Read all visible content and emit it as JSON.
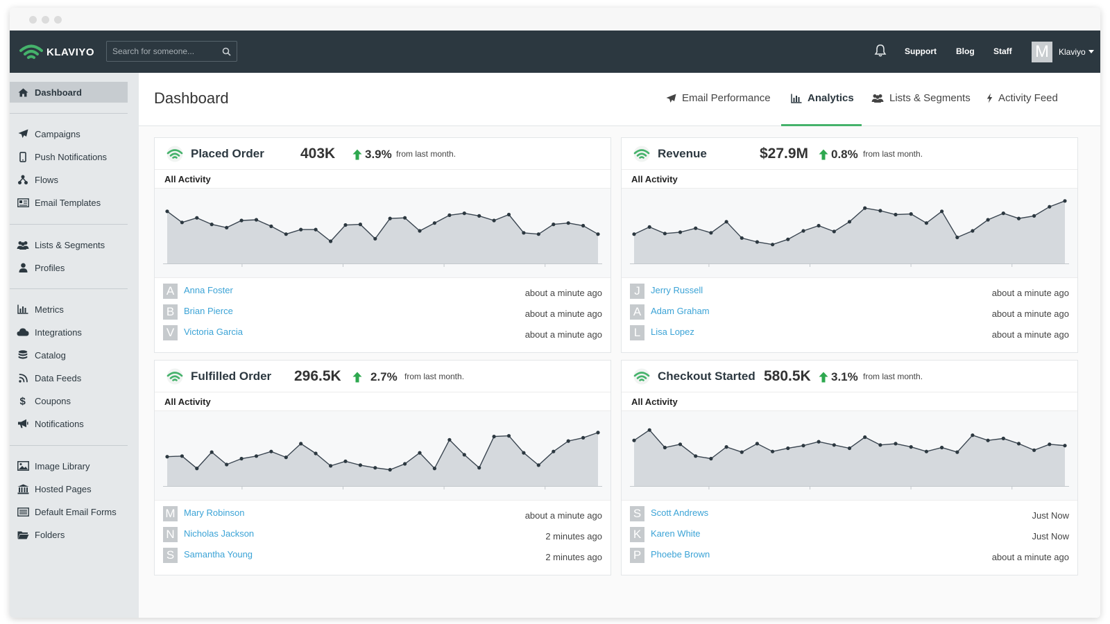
{
  "window": {
    "chrome_dots": [
      "dot",
      "dot",
      "dot"
    ]
  },
  "topbar": {
    "logo_text": "KLAVIYO",
    "search_placeholder": "Search for someone...",
    "nav": [
      "Support",
      "Blog",
      "Staff"
    ],
    "avatar_letter": "M",
    "account_name": "Klaviyo"
  },
  "sidebar": {
    "items": [
      {
        "label": "Dashboard",
        "icon": "home-icon",
        "active": true
      },
      {
        "label": "Campaigns",
        "icon": "paper-plane-icon"
      },
      {
        "label": "Push Notifications",
        "icon": "mobile-icon"
      },
      {
        "label": "Flows",
        "icon": "flow-icon"
      },
      {
        "label": "Email Templates",
        "icon": "template-icon"
      },
      {
        "label": "Lists & Segments",
        "icon": "users-icon"
      },
      {
        "label": "Profiles",
        "icon": "user-icon"
      },
      {
        "label": "Metrics",
        "icon": "bar-chart-icon"
      },
      {
        "label": "Integrations",
        "icon": "cloud-icon"
      },
      {
        "label": "Catalog",
        "icon": "database-icon"
      },
      {
        "label": "Data Feeds",
        "icon": "rss-icon"
      },
      {
        "label": "Coupons",
        "icon": "dollar-icon"
      },
      {
        "label": "Notifications",
        "icon": "megaphone-icon"
      },
      {
        "label": "Image Library",
        "icon": "image-icon"
      },
      {
        "label": "Hosted Pages",
        "icon": "bank-icon"
      },
      {
        "label": "Default Email Forms",
        "icon": "form-icon"
      },
      {
        "label": "Folders",
        "icon": "folder-icon"
      }
    ]
  },
  "main": {
    "title": "Dashboard",
    "tabs": [
      {
        "label": "Email Performance",
        "icon": "paper-plane-icon"
      },
      {
        "label": "Analytics",
        "icon": "bar-chart-icon",
        "active": true
      },
      {
        "label": "Lists & Segments",
        "icon": "users-icon"
      },
      {
        "label": "Activity Feed",
        "icon": "bolt-icon"
      }
    ]
  },
  "colors": {
    "accent_green": "#45b26b",
    "link_blue": "#3ba3d6",
    "topbar_bg": "#2c3840",
    "sidebar_bg": "#e5e8ea"
  },
  "cards": [
    {
      "title": "Placed Order",
      "value": "403K",
      "pct": "3.9%",
      "from": "from last month.",
      "activity_label": "All Activity",
      "chart_data": {
        "type": "area",
        "values": [
          80,
          63,
          70,
          60,
          55,
          66,
          67,
          57,
          45,
          52,
          52,
          34,
          59,
          60,
          38,
          69,
          70,
          50,
          62,
          74,
          77,
          73,
          66,
          75,
          47,
          45,
          60,
          62,
          58,
          45
        ]
      },
      "activity": [
        {
          "initial": "A",
          "name": "Anna Foster",
          "time": "about a minute ago"
        },
        {
          "initial": "B",
          "name": "Brian Pierce",
          "time": "about a minute ago"
        },
        {
          "initial": "V",
          "name": "Victoria Garcia",
          "time": "about a minute ago"
        }
      ]
    },
    {
      "title": "Revenue",
      "value": "$27.9M",
      "pct": "0.8%",
      "from": "from last month.",
      "activity_label": "All Activity",
      "chart_data": {
        "type": "area",
        "values": [
          45,
          56,
          46,
          48,
          54,
          47,
          64,
          39,
          33,
          29,
          37,
          50,
          58,
          49,
          64,
          85,
          81,
          75,
          76,
          62,
          80,
          40,
          50,
          67,
          77,
          69,
          73,
          87,
          96
        ]
      },
      "activity": [
        {
          "initial": "J",
          "name": "Jerry Russell",
          "time": "about a minute ago"
        },
        {
          "initial": "A",
          "name": "Adam Graham",
          "time": "about a minute ago"
        },
        {
          "initial": "L",
          "name": "Lisa Lopez",
          "time": "about a minute ago"
        }
      ]
    },
    {
      "title": "Fulfilled Order",
      "value": "296.5K",
      "pct": "2.7%",
      "from": "from last month.",
      "activity_label": "All Activity",
      "chart_data": {
        "type": "area",
        "values": [
          45,
          46,
          27,
          52,
          33,
          42,
          46,
          53,
          44,
          65,
          50,
          31,
          38,
          32,
          28,
          25,
          34,
          51,
          27,
          71,
          48,
          28,
          76,
          77,
          51,
          32,
          53,
          69,
          74,
          82
        ]
      },
      "activity": [
        {
          "initial": "M",
          "name": "Mary Robinson",
          "time": "about a minute ago"
        },
        {
          "initial": "N",
          "name": "Nicholas Jackson",
          "time": "2 minutes ago"
        },
        {
          "initial": "S",
          "name": "Samantha Young",
          "time": "2 minutes ago"
        }
      ]
    },
    {
      "title": "Checkout Started",
      "value": "580.5K",
      "pct": "3.1%",
      "from": "from last month.",
      "activity_label": "All Activity",
      "chart_data": {
        "type": "area",
        "values": [
          70,
          86,
          59,
          64,
          46,
          42,
          60,
          52,
          65,
          53,
          58,
          62,
          68,
          63,
          58,
          75,
          63,
          65,
          60,
          53,
          59,
          52,
          78,
          70,
          73,
          65,
          55,
          64,
          62
        ]
      },
      "activity": [
        {
          "initial": "S",
          "name": "Scott Andrews",
          "time": "Just Now"
        },
        {
          "initial": "K",
          "name": "Karen White",
          "time": "Just Now"
        },
        {
          "initial": "P",
          "name": "Phoebe Brown",
          "time": "about a minute ago"
        }
      ]
    }
  ]
}
